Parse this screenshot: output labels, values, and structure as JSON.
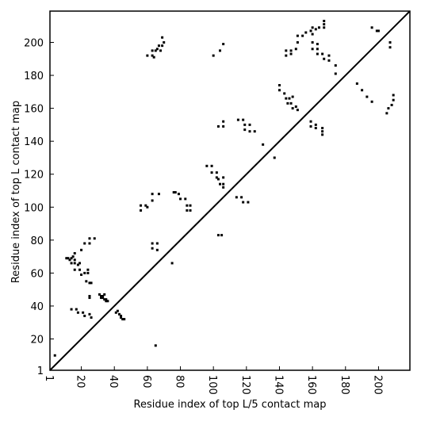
{
  "chart_data": {
    "type": "scatter",
    "xlabel": "Residue index of top L/5 contact map",
    "ylabel": "Residue index of top L contact map",
    "color": "#000000",
    "xlim": [
      1,
      219
    ],
    "ylim": [
      1,
      219
    ],
    "xticks": [
      1,
      20,
      40,
      60,
      80,
      100,
      120,
      140,
      160,
      180,
      200
    ],
    "yticks": [
      1,
      20,
      40,
      60,
      80,
      100,
      120,
      140,
      160,
      180,
      200
    ],
    "diagonal": true,
    "x": [
      4,
      65,
      11,
      12,
      13,
      14,
      15,
      16,
      16,
      14,
      16,
      18,
      19,
      16,
      19,
      22,
      24,
      24,
      23,
      25,
      26,
      20,
      20,
      22,
      25,
      25,
      28,
      14,
      17,
      18,
      21,
      22,
      25,
      26,
      25,
      25,
      31,
      32,
      33,
      33,
      34,
      35,
      35,
      36,
      34,
      32,
      41,
      42,
      43,
      44,
      44,
      45,
      46,
      56,
      56,
      59,
      60,
      63,
      63,
      67,
      63,
      63,
      66,
      66,
      60,
      63,
      64,
      63,
      65,
      66,
      68,
      67,
      69,
      70,
      69,
      75,
      76,
      77,
      79,
      80,
      83,
      84,
      84,
      86,
      86,
      96,
      99,
      99,
      102,
      102,
      103,
      104,
      106,
      106,
      106,
      100,
      104,
      106,
      103,
      105,
      103,
      106,
      106,
      114,
      117,
      118,
      121,
      115,
      118,
      119,
      119,
      122,
      122,
      125,
      130,
      137,
      140,
      140,
      143,
      144,
      145,
      146,
      147,
      148,
      148,
      150,
      151,
      144,
      144,
      147,
      147,
      150,
      151,
      151,
      154,
      156,
      159,
      160,
      160,
      162,
      164,
      167,
      167,
      167,
      160,
      160,
      163,
      163,
      163,
      166,
      167,
      170,
      170,
      174,
      174,
      159,
      159,
      162,
      162,
      166,
      166,
      166,
      187,
      190,
      193,
      196,
      196,
      199,
      200,
      205,
      206,
      208,
      209,
      209,
      207,
      207
    ],
    "values": [
      10,
      16,
      69,
      69,
      68,
      69,
      70,
      72,
      68,
      66,
      66,
      65,
      66,
      62,
      62,
      60,
      60,
      62,
      55,
      54,
      54,
      59,
      74,
      78,
      78,
      81,
      81,
      38,
      38,
      36,
      36,
      34,
      35,
      33,
      46,
      45,
      47,
      46,
      46,
      45,
      44,
      44,
      43,
      43,
      47,
      45,
      36,
      37,
      35,
      34,
      33,
      32,
      32,
      101,
      98,
      101,
      100,
      104,
      108,
      108,
      78,
      75,
      78,
      74,
      192,
      192,
      191,
      195,
      195,
      196,
      195,
      198,
      198,
      200,
      203,
      66,
      109,
      109,
      108,
      105,
      105,
      101,
      98,
      101,
      98,
      125,
      125,
      121,
      121,
      118,
      117,
      114,
      118,
      114,
      112,
      192,
      195,
      199,
      83,
      83,
      149,
      149,
      152,
      106,
      106,
      103,
      103,
      153,
      153,
      150,
      147,
      150,
      146,
      146,
      138,
      130,
      174,
      171,
      169,
      166,
      163,
      166,
      163,
      167,
      160,
      161,
      159,
      192,
      195,
      195,
      193,
      196,
      200,
      204,
      204,
      206,
      207,
      205,
      209,
      208,
      209,
      209,
      211,
      213,
      200,
      196,
      199,
      196,
      193,
      193,
      190,
      192,
      189,
      186,
      181,
      152,
      149,
      150,
      148,
      148,
      146,
      144,
      175,
      171,
      167,
      164,
      209,
      207,
      207,
      157,
      160,
      162,
      165,
      168,
      197,
      200
    ]
  }
}
